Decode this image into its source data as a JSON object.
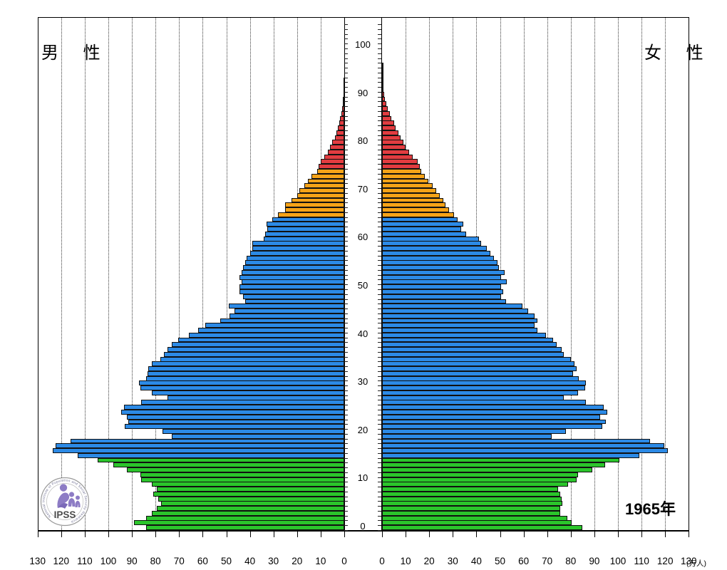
{
  "header": {
    "male_label": "男 性",
    "female_label": "女 性",
    "year_label": "1965年",
    "unit_label": "(万人)"
  },
  "logo": {
    "acronym": "IPSS",
    "ring_text": "National Institute of Population and Social Security Research"
  },
  "chart_data": {
    "type": "bar",
    "subtype": "population-pyramid",
    "title": "1965年",
    "unit": "万人",
    "x_axis": {
      "ticks": [
        0,
        10,
        20,
        30,
        40,
        50,
        60,
        70,
        80,
        90,
        100,
        110,
        120,
        130
      ],
      "max": 130,
      "gridlines": true
    },
    "age_axis": {
      "ticks": [
        0,
        10,
        20,
        30,
        40,
        50,
        60,
        70,
        80,
        90,
        100
      ],
      "min": 0,
      "max": 105
    },
    "color_groups": [
      {
        "label": "0-14",
        "min_age": 0,
        "max_age": 14,
        "color": "#2bc52b"
      },
      {
        "label": "15-64",
        "min_age": 15,
        "max_age": 64,
        "color": "#2c8ae6"
      },
      {
        "label": "65-74",
        "min_age": 65,
        "max_age": 74,
        "color": "#f6a318"
      },
      {
        "label": "75+",
        "min_age": 75,
        "max_age": 105,
        "color": "#e23c40"
      }
    ],
    "series": [
      {
        "name": "male",
        "label": "男 性",
        "side": "left",
        "values": [
          84,
          89,
          84,
          81.5,
          79.5,
          77.5,
          79,
          81,
          79.5,
          81.5,
          86,
          86.5,
          92,
          98,
          104.5,
          113,
          123.5,
          122.5,
          116,
          73,
          77,
          93,
          91.5,
          92,
          94.5,
          93.5,
          86,
          75,
          81.5,
          86.5,
          87,
          84,
          83.5,
          83,
          81.5,
          78,
          76.5,
          75,
          73,
          70.5,
          66,
          62,
          59,
          52.5,
          48.5,
          46.5,
          49,
          42,
          43,
          44.5,
          44.5,
          43.5,
          44.5,
          43.5,
          43,
          42,
          41.5,
          40,
          39,
          39,
          34,
          33.5,
          32.5,
          33,
          30.5,
          28,
          25,
          25,
          22.5,
          20,
          19,
          17,
          15.5,
          14,
          11.5,
          11,
          10,
          8.5,
          7,
          6,
          5,
          4,
          3.4,
          2.7,
          2.1,
          1.7,
          1.3,
          1,
          0.7,
          0.5,
          0.4,
          0.3,
          0.2,
          0.15,
          0.1,
          0.08,
          0.05,
          0.04,
          0.03,
          0.02,
          0.02,
          0.01,
          0.01,
          0.01,
          0.01,
          0.01
        ]
      },
      {
        "name": "female",
        "label": "女 性",
        "side": "right",
        "values": [
          85,
          80.5,
          78.5,
          75.5,
          75.5,
          76.5,
          76,
          75.5,
          74.5,
          79,
          82.5,
          83,
          89,
          94.5,
          100.5,
          109,
          121,
          119.5,
          113.5,
          72,
          78,
          93.5,
          95,
          92.5,
          95.5,
          94,
          86.5,
          77,
          83,
          86,
          86.5,
          83.5,
          81,
          82.5,
          81.5,
          80,
          77,
          76,
          74,
          72.5,
          69.5,
          66,
          64.5,
          66,
          64.5,
          62,
          59.5,
          52.5,
          50.5,
          51.5,
          50.5,
          53,
          50.5,
          52,
          49.5,
          49,
          47.5,
          46,
          44.5,
          42,
          41,
          35.5,
          33.5,
          34.5,
          32,
          30.5,
          28.5,
          27,
          26,
          24.5,
          23,
          21.5,
          19.5,
          18,
          16.5,
          16,
          15,
          13,
          11.5,
          10,
          9,
          8,
          7,
          5.7,
          5,
          4,
          3.2,
          2.4,
          1.7,
          1.2,
          0.8,
          0.6,
          0.45,
          0.35,
          0.25,
          0.2,
          0.15,
          0.1,
          0.07,
          0.05,
          0.04,
          0.03,
          0.02,
          0.02,
          0.01,
          0.01
        ]
      }
    ]
  }
}
